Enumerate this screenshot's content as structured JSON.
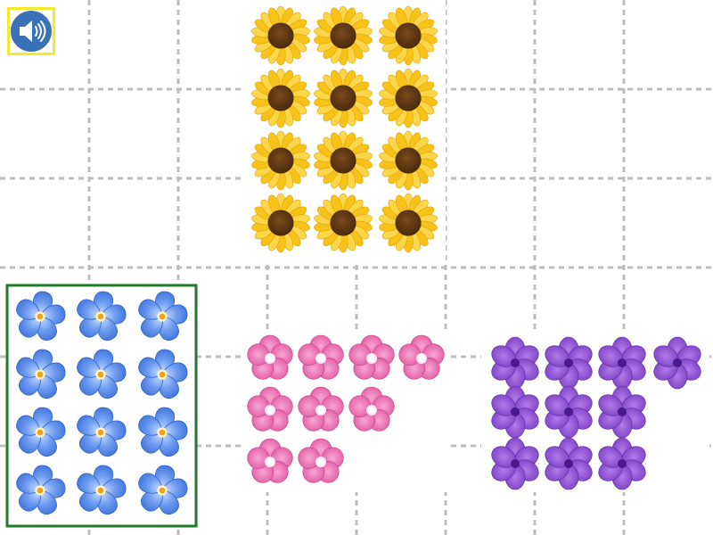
{
  "groups": [
    {
      "count": 12
    },
    {
      "count": 12
    },
    {
      "count": 9
    },
    {
      "count": 10
    }
  ]
}
